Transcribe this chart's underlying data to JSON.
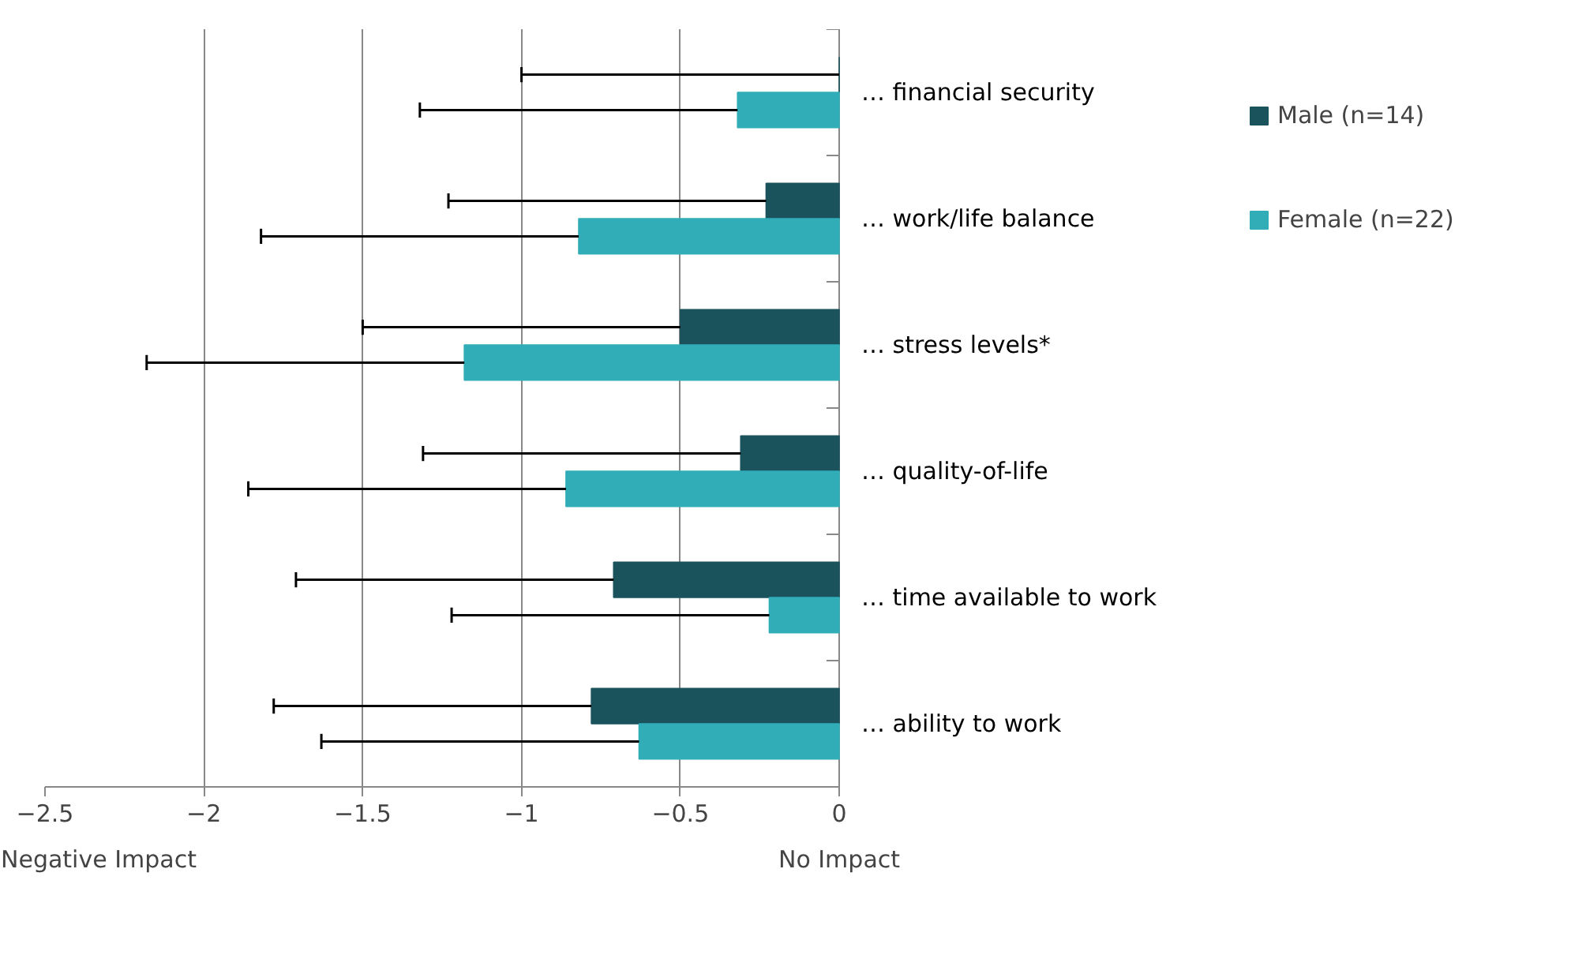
{
  "chart_data": {
    "type": "bar",
    "orientation": "horizontal",
    "categories": [
      "… financial security",
      "… work/life balance",
      "… stress levels*",
      "… quality-of-life",
      "… time available to work",
      "… ability to work"
    ],
    "series": [
      {
        "name": "Male (n=14)",
        "color": "#1a535c",
        "values": [
          0,
          -0.23,
          -0.5,
          -0.31,
          -0.71,
          -0.78
        ],
        "errors": [
          [
            -1.0,
            0
          ],
          [
            -1.23,
            -0.23
          ],
          [
            -1.5,
            -0.5
          ],
          [
            -1.31,
            -0.31
          ],
          [
            -1.71,
            -0.71
          ],
          [
            -1.78,
            -0.78
          ]
        ]
      },
      {
        "name": "Female (n=22)",
        "color": "#31adb8",
        "values": [
          -0.32,
          -0.82,
          -1.18,
          -0.86,
          -0.22,
          -0.63
        ],
        "errors": [
          [
            -1.32,
            -0.32
          ],
          [
            -1.82,
            -0.82
          ],
          [
            -2.18,
            -1.18
          ],
          [
            -1.86,
            -0.86
          ],
          [
            -1.22,
            -0.22
          ],
          [
            -1.63,
            -0.63
          ]
        ]
      }
    ],
    "xlim": [
      -2.5,
      0
    ],
    "xticks": [
      -2.5,
      -2,
      -1.5,
      -1,
      -0.5,
      0
    ],
    "grid": "x",
    "legend": "right",
    "annotations": [
      "Negative Impact",
      "No Impact"
    ]
  }
}
